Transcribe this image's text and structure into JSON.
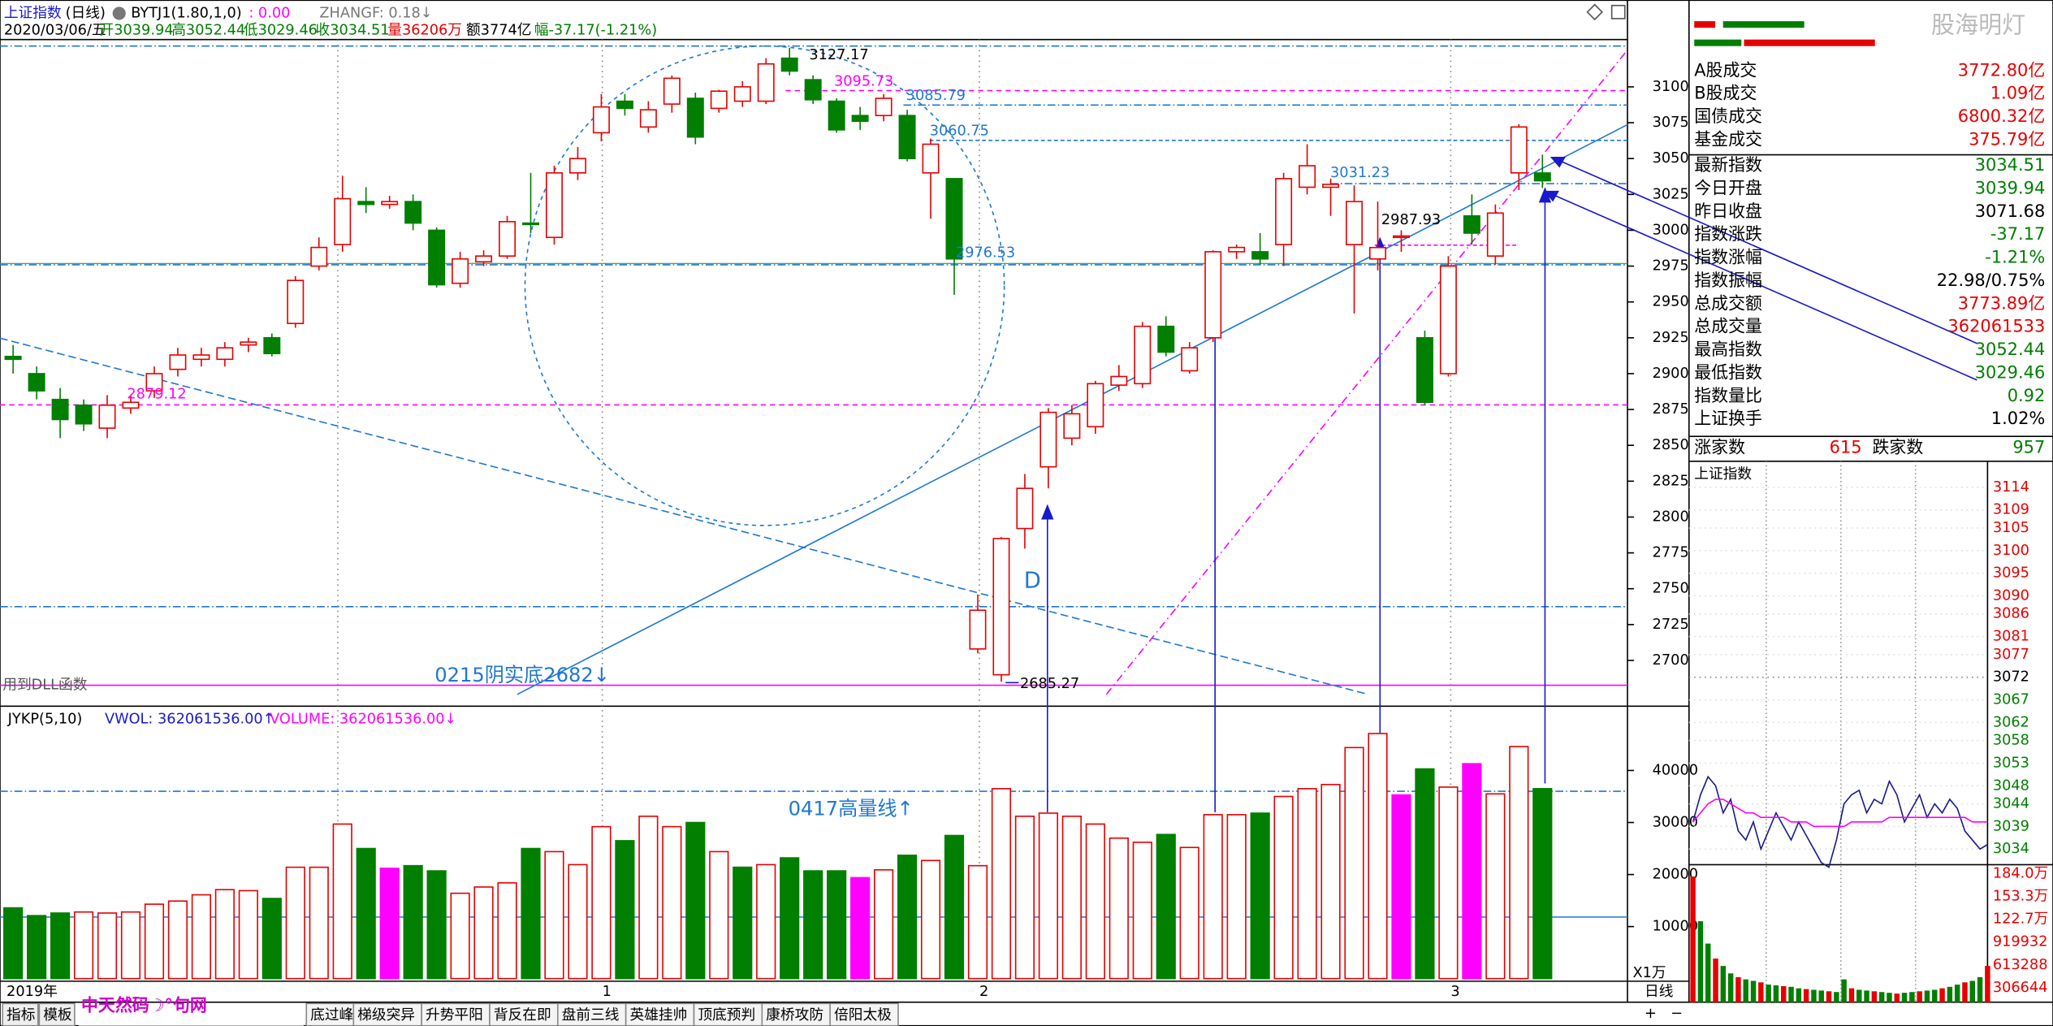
{
  "header": {
    "title": "上证指数",
    "period": "(日线)",
    "indicator": "BYTJ1(1.80,1,0)",
    "indicator_value": ": 0.00",
    "zhangf": "ZHANGF: 0.18↓",
    "info": {
      "date": "2020/03/06/五",
      "open": "开3039.94",
      "high": "高3052.44",
      "low": "低3029.46",
      "close": "收3034.51",
      "volume": "量36206万",
      "amount": "额3774亿",
      "change": "幅-37.17(-1.21%)"
    }
  },
  "chart_data": [
    {
      "type": "candlestick",
      "up_color": "#e60000",
      "down_color": "#007f00",
      "ylim": [
        2669,
        3133
      ],
      "yticks": [
        2700,
        2725,
        2750,
        2775,
        2800,
        2825,
        2850,
        2875,
        2900,
        2925,
        2950,
        2975,
        3000,
        3025,
        3050,
        3075,
        3100
      ],
      "x_labels": [
        "2019年",
        "1",
        "2",
        "3"
      ],
      "candles": [
        [
          2912,
          2910,
          2920,
          2900
        ],
        [
          2900,
          2888,
          2905,
          2882
        ],
        [
          2882,
          2868,
          2890,
          2855
        ],
        [
          2878,
          2865,
          2882,
          2860
        ],
        [
          2862,
          2878,
          2885,
          2855
        ],
        [
          2876,
          2880,
          2885,
          2872
        ],
        [
          2888,
          2900,
          2905,
          2883
        ],
        [
          2903,
          2913,
          2918,
          2898
        ],
        [
          2910,
          2913,
          2918,
          2905
        ],
        [
          2910,
          2918,
          2922,
          2905
        ],
        [
          2920,
          2922,
          2925,
          2915
        ],
        [
          2925,
          2914,
          2928,
          2912
        ],
        [
          2935,
          2965,
          2968,
          2932
        ],
        [
          2975,
          2988,
          2995,
          2972
        ],
        [
          2990,
          3022,
          3038,
          2985
        ],
        [
          3020,
          3018,
          3030,
          3012
        ],
        [
          3018,
          3020,
          3024,
          3015
        ],
        [
          3020,
          3005,
          3025,
          3000
        ],
        [
          3000,
          2962,
          3002,
          2960
        ],
        [
          2963,
          2980,
          2985,
          2960
        ],
        [
          2978,
          2982,
          2986,
          2975
        ],
        [
          2982,
          3006,
          3010,
          2980
        ],
        [
          3005,
          3004,
          3040,
          2998
        ],
        [
          2995,
          3040,
          3045,
          2990
        ],
        [
          3040,
          3050,
          3058,
          3035
        ],
        [
          3068,
          3086,
          3095,
          3062
        ],
        [
          3090,
          3085,
          3095,
          3080
        ],
        [
          3072,
          3084,
          3090,
          3068
        ],
        [
          3088,
          3106,
          3108,
          3082
        ],
        [
          3092,
          3065,
          3096,
          3060
        ],
        [
          3085,
          3097,
          3098,
          3082
        ],
        [
          3090,
          3100,
          3104,
          3086
        ],
        [
          3090,
          3116,
          3120,
          3088
        ],
        [
          3120,
          3111,
          3127.17,
          3108
        ],
        [
          3105,
          3091,
          3108,
          3088
        ],
        [
          3090,
          3070,
          3092,
          3068
        ],
        [
          3080,
          3076,
          3086,
          3070
        ],
        [
          3080,
          3092,
          3095,
          3076
        ],
        [
          3080,
          3050,
          3084,
          3048
        ],
        [
          3040,
          3060,
          3064,
          3008
        ],
        [
          3036,
          2980,
          3036,
          2955
        ],
        [
          2708,
          2735,
          2746,
          2705
        ],
        [
          2690,
          2785,
          2786,
          2685.27
        ],
        [
          2792,
          2820,
          2830,
          2778
        ],
        [
          2835,
          2873,
          2876,
          2820
        ],
        [
          2855,
          2872,
          2878,
          2850
        ],
        [
          2863,
          2893,
          2895,
          2858
        ],
        [
          2892,
          2898,
          2906,
          2888
        ],
        [
          2893,
          2933,
          2936,
          2890
        ],
        [
          2933,
          2915,
          2940,
          2912
        ],
        [
          2902,
          2918,
          2922,
          2900
        ],
        [
          2925,
          2985,
          2986,
          2922
        ],
        [
          2985,
          2988,
          2990,
          2980
        ],
        [
          2985,
          2980,
          2998,
          2976
        ],
        [
          2990,
          3036,
          3040,
          2975
        ],
        [
          3030,
          3045,
          3060,
          3025
        ],
        [
          3030,
          3032,
          3036,
          3010
        ],
        [
          2990,
          3020,
          3031.23,
          2942
        ],
        [
          2980,
          2987.93,
          3020,
          2972
        ],
        [
          2995,
          2996,
          3000,
          2985
        ],
        [
          2925,
          2880,
          2930,
          2878
        ],
        [
          2900,
          2975,
          2982,
          2898
        ],
        [
          3010,
          2998,
          3025,
          2990
        ],
        [
          2982,
          3012,
          3018,
          2976
        ],
        [
          3040,
          3072,
          3074,
          3028
        ],
        [
          3039.94,
          3034.51,
          3052.44,
          3029.46
        ]
      ]
    },
    {
      "type": "bar",
      "title": "JYKP(5,10)",
      "legend": [
        "VWOL: 362061536.00↑",
        "VOLUME: 362061536.00↓"
      ],
      "unit_label": "X1万",
      "up_color": "#e60000",
      "ylim": [
        0,
        51600
      ],
      "yticks": [
        10000,
        20000,
        30000,
        40000
      ],
      "values": [
        13600,
        12100,
        12600,
        12800,
        12600,
        12800,
        14300,
        14900,
        16100,
        17100,
        16900,
        15400,
        21400,
        21400,
        29700,
        25000,
        21200,
        21700,
        20700,
        16400,
        17600,
        18400,
        25000,
        24400,
        21900,
        29200,
        26500,
        31200,
        29200,
        30000,
        24400,
        21400,
        21900,
        23200,
        20700,
        20700,
        19400,
        20900,
        23700,
        22700,
        27500,
        21700,
        36500,
        31200,
        31800,
        31200,
        29700,
        27000,
        26200,
        27700,
        25200,
        31500,
        31500,
        31800,
        35000,
        36500,
        37300,
        44400,
        47100,
        35300,
        40300,
        36800,
        41300,
        35500,
        44600,
        36500
      ],
      "colors": [
        "#007f00",
        "#007f00",
        "#007f00",
        "#e60000",
        "#e60000",
        "#e60000",
        "#e60000",
        "#e60000",
        "#e60000",
        "#e60000",
        "#e60000",
        "#007f00",
        "#e60000",
        "#e60000",
        "#e60000",
        "#007f00",
        "#ff00ff",
        "#007f00",
        "#007f00",
        "#e60000",
        "#e60000",
        "#e60000",
        "#007f00",
        "#e60000",
        "#e60000",
        "#e60000",
        "#007f00",
        "#e60000",
        "#e60000",
        "#007f00",
        "#e60000",
        "#007f00",
        "#e60000",
        "#007f00",
        "#007f00",
        "#007f00",
        "#ff00ff",
        "#e60000",
        "#007f00",
        "#e60000",
        "#007f00",
        "#e60000",
        "#e60000",
        "#e60000",
        "#e60000",
        "#e60000",
        "#e60000",
        "#e60000",
        "#e60000",
        "#007f00",
        "#e60000",
        "#e60000",
        "#e60000",
        "#007f00",
        "#e60000",
        "#e60000",
        "#e60000",
        "#e60000",
        "#e60000",
        "#ff00ff",
        "#007f00",
        "#e60000",
        "#ff00ff",
        "#e60000",
        "#e60000",
        "#007f00"
      ]
    },
    {
      "type": "line",
      "title": "上证指数",
      "ylim": [
        3032,
        3116
      ],
      "yticks": [
        3114,
        3109,
        3105,
        3100,
        3095,
        3090,
        3086,
        3081,
        3077,
        3072,
        3067,
        3062,
        3058,
        3053,
        3048,
        3044,
        3039,
        3034
      ],
      "base": 3072,
      "series": [
        {
          "color": "#1a1a8c",
          "values": [
            3040,
            3046,
            3050,
            3048,
            3042,
            3045,
            3038,
            3036,
            3040,
            3034,
            3038,
            3042,
            3039,
            3036,
            3040,
            3037,
            3034,
            3031,
            3030,
            3036,
            3044,
            3046,
            3047,
            3042,
            3045,
            3044,
            3049,
            3046,
            3040,
            3043,
            3046,
            3041,
            3044,
            3042,
            3045,
            3043,
            3038,
            3036,
            3034,
            3035
          ]
        },
        {
          "color": "#ff00ff",
          "values": [
            3040,
            3042,
            3044,
            3045,
            3045,
            3044,
            3043,
            3042,
            3042,
            3041,
            3041,
            3041,
            3041,
            3040,
            3040,
            3040,
            3039,
            3039,
            3039,
            3039,
            3039,
            3040,
            3040,
            3040,
            3040,
            3040,
            3041,
            3041,
            3041,
            3041,
            3041,
            3041,
            3041,
            3041,
            3041,
            3041,
            3041,
            3040,
            3040,
            3040
          ]
        }
      ],
      "volume": {
        "ylim": [
          0,
          1950000
        ],
        "ticks": [
          {
            "value": 1840000,
            "label": "184.0万"
          },
          {
            "value": 1533000,
            "label": "153.3万"
          },
          {
            "value": 1227000,
            "label": "122.7万"
          },
          919932,
          613288,
          306644
        ],
        "values": [
          1800000,
          1200000,
          900000,
          700000,
          600000,
          500000,
          450000,
          420000,
          400000,
          380000,
          350000,
          340000,
          330000,
          320000,
          300000,
          290000,
          280000,
          270000,
          260000,
          250000,
          420000,
          300000,
          280000,
          270000,
          260000,
          250000,
          240000,
          230000,
          240000,
          250000,
          260000,
          270000,
          280000,
          300000,
          320000,
          350000,
          380000,
          400000,
          450000,
          600000
        ]
      }
    }
  ],
  "annotations": [
    "3127.17",
    "3095.73",
    "3085.79",
    "3060.75",
    "2976.53",
    "2879.12",
    "3031.23",
    "2987.93",
    "2685.27",
    "D",
    "0215阴实底2682↓",
    "0417高量线↑",
    "用到DLL函数"
  ],
  "side_panel": {
    "watermark": "股海明灯",
    "rows": [
      {
        "label": "A股成交",
        "value": "3772.80亿",
        "color": "#e60000"
      },
      {
        "label": "B股成交",
        "value": "1.09亿",
        "color": "#e60000"
      },
      {
        "label": "国债成交",
        "value": "6800.32亿",
        "color": "#e60000"
      },
      {
        "label": "基金成交",
        "value": "375.79亿",
        "color": "#e60000"
      },
      {
        "label": "最新指数",
        "value": "3034.51",
        "color": "#007f00"
      },
      {
        "label": "今日开盘",
        "value": "3039.94",
        "color": "#007f00"
      },
      {
        "label": "昨日收盘",
        "value": "3071.68",
        "color": "#000000"
      },
      {
        "label": "指数涨跌",
        "value": "-37.17",
        "color": "#007f00"
      },
      {
        "label": "指数涨幅",
        "value": "-1.21%",
        "color": "#007f00"
      },
      {
        "label": "指数振幅",
        "value": "22.98/0.75%",
        "color": "#000000"
      },
      {
        "label": "总成交额",
        "value": "3773.89亿",
        "color": "#e60000"
      },
      {
        "label": "总成交量",
        "value": "362061533",
        "color": "#e60000"
      },
      {
        "label": "最高指数",
        "value": "3052.44",
        "color": "#007f00"
      },
      {
        "label": "最低指数",
        "value": "3029.46",
        "color": "#007f00"
      },
      {
        "label": "指数量比",
        "value": "0.92",
        "color": "#007f00"
      },
      {
        "label": "上证换手",
        "value": "1.02%",
        "color": "#000000"
      }
    ],
    "breadth": {
      "up_label": "涨家数",
      "up": "615",
      "down_label": "跌家数",
      "down": "957"
    }
  },
  "toolbar": {
    "tabs": [
      "指标",
      "模板"
    ],
    "logo": "中天然码☽°句网",
    "formulas": [
      "底过峰",
      "梯级突异",
      "升势平阳",
      "背反在即",
      "盘前三线",
      "英雄挂帅",
      "顶底预判",
      "康桥攻防",
      "倍阳太极"
    ],
    "right_tab": "日线",
    "buttons": [
      "+",
      "−"
    ]
  }
}
